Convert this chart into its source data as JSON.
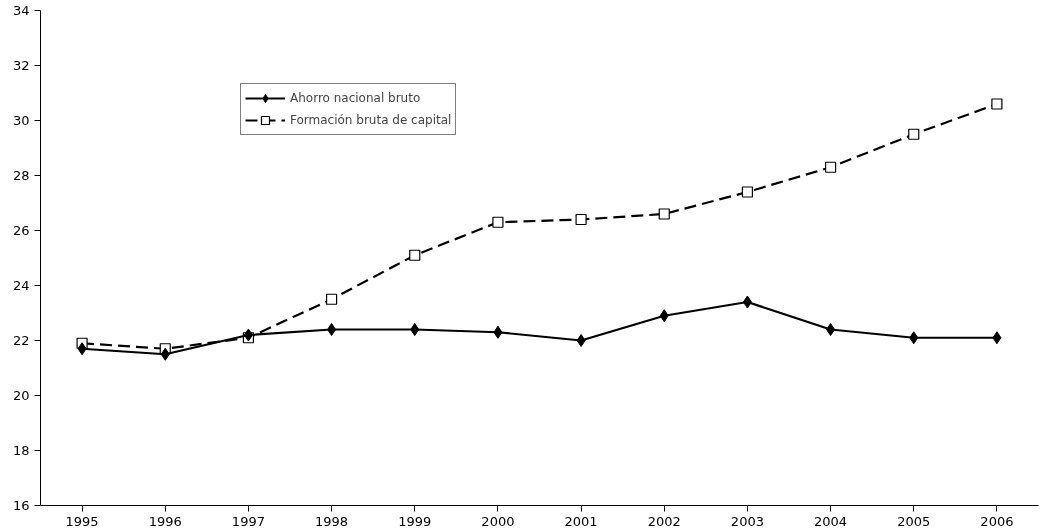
{
  "chart_data": {
    "type": "line",
    "categories": [
      "1995",
      "1996",
      "1997",
      "1998",
      "1999",
      "2000",
      "2001",
      "2002",
      "2003",
      "2004",
      "2005",
      "2006"
    ],
    "ylim": [
      16,
      34
    ],
    "yticks": [
      16,
      18,
      20,
      22,
      24,
      26,
      28,
      30,
      32,
      34
    ],
    "grid": false,
    "legend": "top left",
    "series": [
      {
        "name": "Ahorro nacional bruto",
        "color": "#000000",
        "marker": "diamond",
        "line_style": "solid",
        "values": [
          21.7,
          21.5,
          22.2,
          22.4,
          22.4,
          22.3,
          22.0,
          22.9,
          23.4,
          22.4,
          22.1,
          22.1
        ]
      },
      {
        "name": "Formación bruta de capital",
        "color": "#000000",
        "marker": "square",
        "line_style": "dashed",
        "values": [
          21.9,
          21.7,
          22.1,
          23.5,
          25.1,
          26.3,
          26.4,
          26.6,
          27.4,
          28.3,
          29.5,
          30.6
        ]
      }
    ]
  }
}
